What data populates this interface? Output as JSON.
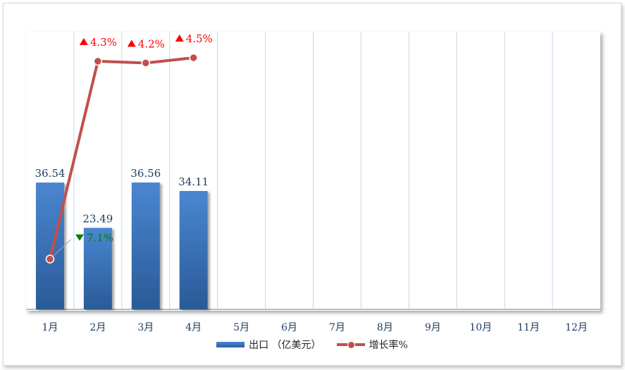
{
  "chart_data": {
    "type": "bar",
    "categories": [
      "1月",
      "2月",
      "3月",
      "4月",
      "5月",
      "6月",
      "7月",
      "8月",
      "9月",
      "10月",
      "11月",
      "12月"
    ],
    "series": [
      {
        "name": "出口 （亿美元）",
        "type": "bar",
        "color": "#3a75c4",
        "values": [
          36.54,
          23.49,
          36.56,
          34.11,
          null,
          null,
          null,
          null,
          null,
          null,
          null,
          null
        ]
      },
      {
        "name": "增长率%",
        "type": "line",
        "color": "#c0504d",
        "values": [
          -7.1,
          4.3,
          4.2,
          4.5,
          null,
          null,
          null,
          null,
          null,
          null,
          null,
          null
        ]
      }
    ],
    "line_labels": [
      "7.1%",
      "4.3%",
      "4.2%",
      "4.5%"
    ],
    "line_label_colors": [
      "#008000",
      "#ff0000",
      "#ff0000",
      "#ff0000"
    ],
    "line_label_arrows": [
      "down",
      "up",
      "up",
      "up"
    ],
    "bar_ylim": [
      0,
      80
    ],
    "line_ylim": [
      -10,
      6
    ],
    "grid": "vertical",
    "legend": "bottom"
  }
}
